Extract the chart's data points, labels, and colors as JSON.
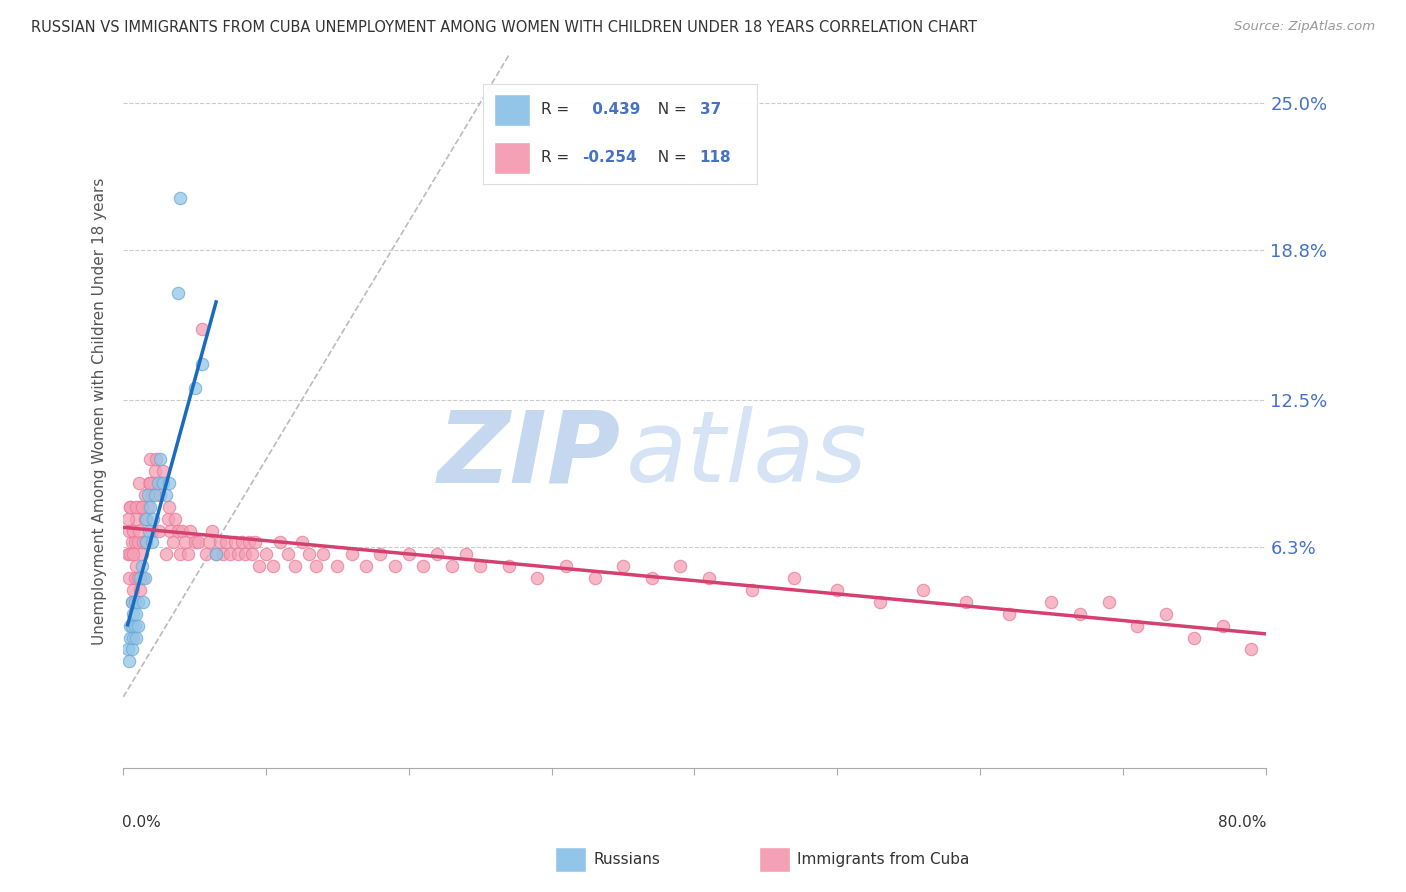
{
  "title": "RUSSIAN VS IMMIGRANTS FROM CUBA UNEMPLOYMENT AMONG WOMEN WITH CHILDREN UNDER 18 YEARS CORRELATION CHART",
  "source": "Source: ZipAtlas.com",
  "ylabel": "Unemployment Among Women with Children Under 18 years",
  "ytick_labels": [
    "6.3%",
    "12.5%",
    "18.8%",
    "25.0%"
  ],
  "ytick_values": [
    0.063,
    0.125,
    0.188,
    0.25
  ],
  "xmin": 0.0,
  "xmax": 0.8,
  "ymin": -0.03,
  "ymax": 0.27,
  "russian_color": "#92c5e8",
  "cuba_color": "#f4a0b5",
  "russian_edge": "#6aaad4",
  "cuba_edge": "#e87a9a",
  "russian_R": 0.439,
  "russian_N": 37,
  "cuba_R": -0.254,
  "cuba_N": 118,
  "watermark": "ZIPatlas",
  "watermark_zip_color": "#c5d8f0",
  "watermark_atlas_color": "#c5d8f0",
  "legend_label_russian": "Russians",
  "legend_label_cuba": "Immigrants from Cuba",
  "russian_x": [
    0.003,
    0.004,
    0.005,
    0.005,
    0.006,
    0.006,
    0.006,
    0.007,
    0.007,
    0.008,
    0.008,
    0.009,
    0.009,
    0.01,
    0.01,
    0.012,
    0.013,
    0.014,
    0.015,
    0.016,
    0.016,
    0.017,
    0.018,
    0.019,
    0.02,
    0.021,
    0.022,
    0.024,
    0.026,
    0.028,
    0.03,
    0.032,
    0.038,
    0.04,
    0.05,
    0.055,
    0.065
  ],
  "russian_y": [
    0.02,
    0.015,
    0.025,
    0.03,
    0.02,
    0.03,
    0.04,
    0.025,
    0.035,
    0.03,
    0.04,
    0.025,
    0.035,
    0.03,
    0.04,
    0.05,
    0.055,
    0.04,
    0.05,
    0.065,
    0.075,
    0.085,
    0.07,
    0.08,
    0.065,
    0.075,
    0.085,
    0.09,
    0.1,
    0.09,
    0.085,
    0.09,
    0.17,
    0.21,
    0.13,
    0.14,
    0.06
  ],
  "cuba_x": [
    0.003,
    0.004,
    0.004,
    0.005,
    0.005,
    0.006,
    0.006,
    0.007,
    0.007,
    0.008,
    0.008,
    0.009,
    0.009,
    0.01,
    0.01,
    0.011,
    0.011,
    0.012,
    0.013,
    0.014,
    0.014,
    0.015,
    0.015,
    0.016,
    0.017,
    0.018,
    0.019,
    0.02,
    0.02,
    0.021,
    0.022,
    0.023,
    0.025,
    0.026,
    0.027,
    0.028,
    0.03,
    0.031,
    0.032,
    0.033,
    0.035,
    0.036,
    0.038,
    0.04,
    0.041,
    0.043,
    0.045,
    0.047,
    0.05,
    0.052,
    0.055,
    0.058,
    0.06,
    0.062,
    0.065,
    0.068,
    0.07,
    0.072,
    0.075,
    0.078,
    0.08,
    0.083,
    0.085,
    0.088,
    0.09,
    0.092,
    0.095,
    0.1,
    0.105,
    0.11,
    0.115,
    0.12,
    0.125,
    0.13,
    0.135,
    0.14,
    0.15,
    0.16,
    0.17,
    0.18,
    0.19,
    0.2,
    0.21,
    0.22,
    0.23,
    0.24,
    0.25,
    0.27,
    0.29,
    0.31,
    0.33,
    0.35,
    0.37,
    0.39,
    0.41,
    0.44,
    0.47,
    0.5,
    0.53,
    0.56,
    0.59,
    0.62,
    0.65,
    0.67,
    0.69,
    0.71,
    0.73,
    0.75,
    0.77,
    0.79,
    0.003,
    0.005,
    0.007,
    0.009,
    0.011,
    0.013,
    0.016,
    0.019
  ],
  "cuba_y": [
    0.06,
    0.05,
    0.07,
    0.06,
    0.08,
    0.04,
    0.065,
    0.045,
    0.07,
    0.05,
    0.065,
    0.055,
    0.075,
    0.05,
    0.065,
    0.07,
    0.08,
    0.045,
    0.06,
    0.05,
    0.065,
    0.075,
    0.085,
    0.065,
    0.08,
    0.09,
    0.1,
    0.07,
    0.085,
    0.09,
    0.095,
    0.1,
    0.07,
    0.085,
    0.09,
    0.095,
    0.06,
    0.075,
    0.08,
    0.07,
    0.065,
    0.075,
    0.07,
    0.06,
    0.07,
    0.065,
    0.06,
    0.07,
    0.065,
    0.065,
    0.155,
    0.06,
    0.065,
    0.07,
    0.06,
    0.065,
    0.06,
    0.065,
    0.06,
    0.065,
    0.06,
    0.065,
    0.06,
    0.065,
    0.06,
    0.065,
    0.055,
    0.06,
    0.055,
    0.065,
    0.06,
    0.055,
    0.065,
    0.06,
    0.055,
    0.06,
    0.055,
    0.06,
    0.055,
    0.06,
    0.055,
    0.06,
    0.055,
    0.06,
    0.055,
    0.06,
    0.055,
    0.055,
    0.05,
    0.055,
    0.05,
    0.055,
    0.05,
    0.055,
    0.05,
    0.045,
    0.05,
    0.045,
    0.04,
    0.045,
    0.04,
    0.035,
    0.04,
    0.035,
    0.04,
    0.03,
    0.035,
    0.025,
    0.03,
    0.02,
    0.075,
    0.08,
    0.06,
    0.08,
    0.09,
    0.08,
    0.075,
    0.09
  ],
  "diag_line_color": "#bbbbbb",
  "trend_russian_color": "#1a6bbf",
  "trend_cuba_color": "#d44070"
}
